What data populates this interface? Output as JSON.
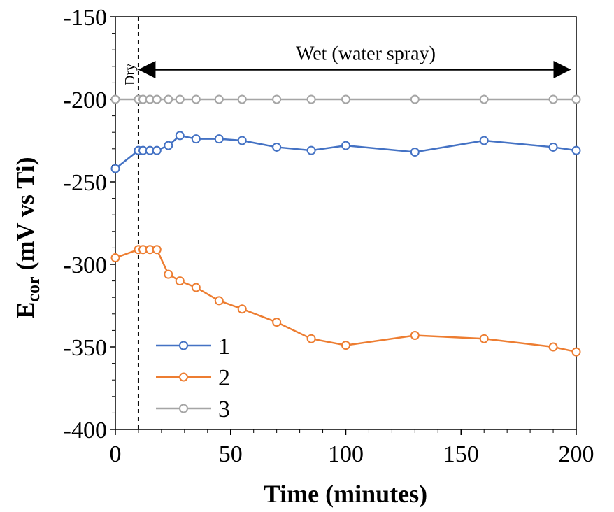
{
  "chart_data": {
    "type": "line",
    "title": "",
    "xlabel": "Time (minutes)",
    "ylabel_main": "E",
    "ylabel_sub": "cor",
    "ylabel_rest": " (mV vs Ti)",
    "xlim": [
      0,
      200
    ],
    "ylim": [
      -400,
      -150
    ],
    "x_ticks": [
      0,
      50,
      100,
      150,
      200
    ],
    "y_ticks": [
      -400,
      -350,
      -300,
      -250,
      -200,
      -150
    ],
    "grid": false,
    "legend_position": "bottom-left",
    "annotations": {
      "dry_label": "Dry",
      "dry_x": 10,
      "wet_label": "Wet (water spray)",
      "wet_arrow_start": 10,
      "wet_arrow_end": 200,
      "wet_arrow_y": -182
    },
    "series": [
      {
        "name": "1",
        "color": "#4472C4",
        "x": [
          0,
          10,
          12,
          15,
          18,
          23,
          28,
          35,
          45,
          55,
          70,
          85,
          100,
          130,
          160,
          190,
          200
        ],
        "y": [
          -242,
          -231,
          -231,
          -231,
          -231,
          -228,
          -222,
          -224,
          -224,
          -225,
          -229,
          -231,
          -228,
          -232,
          -225,
          -229,
          -231
        ]
      },
      {
        "name": "2",
        "color": "#ED7D31",
        "x": [
          0,
          10,
          12,
          15,
          18,
          23,
          28,
          35,
          45,
          55,
          70,
          85,
          100,
          130,
          160,
          190,
          200
        ],
        "y": [
          -296,
          -291,
          -291,
          -291,
          -291,
          -306,
          -310,
          -314,
          -322,
          -327,
          -335,
          -345,
          -349,
          -343,
          -345,
          -350,
          -353
        ]
      },
      {
        "name": "3",
        "color": "#A5A5A5",
        "x": [
          0,
          10,
          12,
          15,
          18,
          23,
          28,
          35,
          45,
          55,
          70,
          85,
          100,
          130,
          160,
          190,
          200
        ],
        "y": [
          -200,
          -200,
          -200,
          -200,
          -200,
          -200,
          -200,
          -200,
          -200,
          -200,
          -200,
          -200,
          -200,
          -200,
          -200,
          -200,
          -200
        ]
      }
    ]
  }
}
